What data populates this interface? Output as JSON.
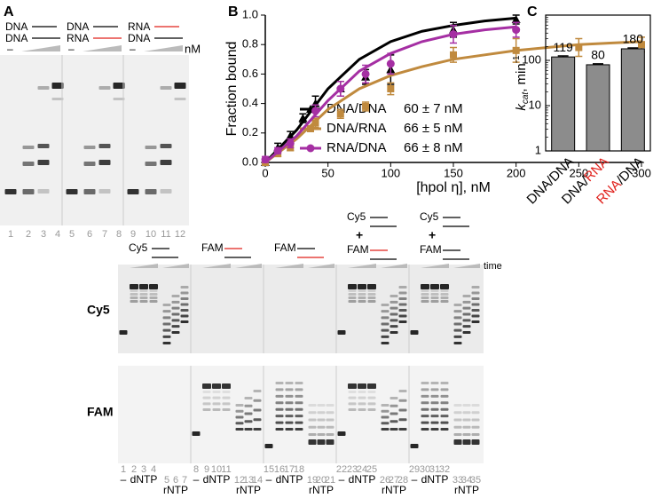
{
  "panel_a": {
    "label": "A",
    "groups": [
      {
        "top": "DNA",
        "bottom": "DNA",
        "top_color": "#000000",
        "bottom_color": "#000000"
      },
      {
        "top": "DNA",
        "bottom": "RNA",
        "top_color": "#000000",
        "bottom_color": "#e0201b"
      },
      {
        "top": "RNA",
        "bottom": "DNA",
        "top_color": "#e0201b",
        "bottom_color": "#000000"
      }
    ],
    "dash": "–",
    "unit": "nM",
    "lanes": [
      "1",
      "2",
      "3",
      "4",
      "5",
      "6",
      "7",
      "8",
      "9",
      "10",
      "11",
      "12"
    ]
  },
  "chart_data": [
    {
      "type": "line",
      "label": "B",
      "x_label": "[hpol η], nM",
      "y_label": "Fraction bound",
      "xlim": [
        0,
        300
      ],
      "xticks": [
        0,
        50,
        100,
        150,
        200,
        250,
        300
      ],
      "ylim": [
        0,
        1
      ],
      "yticks": [
        {
          "value": 0,
          "label": "0.0"
        },
        0.2,
        0.4,
        0.6,
        0.8,
        {
          "value": 1,
          "label": "1.0"
        }
      ],
      "fit_x": [
        0,
        25,
        50,
        75,
        100,
        125,
        150,
        175,
        200,
        225,
        250,
        275,
        300
      ],
      "series": [
        {
          "name": "DNA/DNA",
          "kd_label": "60 ± 7 nM",
          "color": "#000000",
          "marker": "triangle",
          "x": [
            0,
            10,
            20,
            30,
            40,
            60,
            80,
            100,
            150,
            200
          ],
          "values": [
            0,
            0.1,
            0.18,
            0.3,
            0.4,
            0.5,
            0.58,
            0.63,
            0.9,
            0.97
          ],
          "errors": [
            0.02,
            0.03,
            0.03,
            0.03,
            0.05,
            0.05,
            0.05,
            0.1,
            0.05,
            0.03
          ],
          "fit": [
            0,
            0.22,
            0.5,
            0.7,
            0.82,
            0.89,
            0.93,
            0.96,
            0.98,
            null,
            null,
            null,
            null
          ]
        },
        {
          "name": "DNA/RNA",
          "kd_label": "66 ± 5 nM",
          "color": "#c08a3e",
          "marker": "square",
          "x": [
            0,
            10,
            20,
            40,
            60,
            80,
            100,
            150,
            200,
            250,
            300
          ],
          "values": [
            0,
            0.06,
            0.1,
            0.27,
            0.33,
            0.38,
            0.5,
            0.73,
            0.76,
            0.78,
            0.8
          ],
          "errors": [
            0.01,
            0.02,
            0.02,
            0.03,
            0.03,
            0.03,
            0.04,
            0.05,
            0.08,
            0.06,
            0.05
          ],
          "fit": [
            0,
            0.16,
            0.36,
            0.5,
            0.59,
            0.65,
            0.7,
            0.73,
            0.76,
            0.78,
            0.8,
            0.81,
            0.82
          ]
        },
        {
          "name": "RNA/DNA",
          "kd_label": "66 ± 8 nM",
          "color": "#a52fa3",
          "marker": "circle",
          "x": [
            0,
            10,
            20,
            40,
            60,
            80,
            100,
            150,
            200
          ],
          "values": [
            0.02,
            0.08,
            0.13,
            0.35,
            0.5,
            0.6,
            0.67,
            0.87,
            0.9
          ],
          "errors": [
            0.02,
            0.02,
            0.03,
            0.04,
            0.05,
            0.06,
            0.07,
            0.06,
            0.05
          ],
          "fit": [
            0,
            0.18,
            0.42,
            0.62,
            0.74,
            0.82,
            0.87,
            0.9,
            0.92,
            null,
            null,
            null,
            null
          ]
        }
      ]
    },
    {
      "type": "bar",
      "label": "C",
      "log_scale": true,
      "y_label": {
        "symbol": "k",
        "subscript": "cat",
        "text": ", min",
        "superscript": "-1"
      },
      "categories": [
        [
          {
            "text": "DNA/DNA",
            "color": "#000000"
          }
        ],
        [
          {
            "text": "DNA/",
            "color": "#000000"
          },
          {
            "text": "RNA",
            "color": "#e0201b"
          }
        ],
        [
          {
            "text": "RNA",
            "color": "#e0201b"
          },
          {
            "text": "/DNA",
            "color": "#000000"
          }
        ]
      ],
      "values": [
        119,
        80,
        180
      ],
      "errors": [
        6,
        4,
        8
      ],
      "color": "#8c8c8c",
      "ylim": [
        1,
        1000
      ],
      "yticks": [
        1,
        10,
        100
      ]
    }
  ],
  "panel_d": {
    "label": "D",
    "rows": [
      "Cy5",
      "FAM"
    ],
    "time": "time",
    "groups": [
      {
        "labels": [
          "Cy5"
        ],
        "strands": [
          [
            "#000000",
            "#000000"
          ]
        ]
      },
      {
        "labels": [
          "FAM"
        ],
        "strands": [
          [
            "#e0201b",
            "#000000"
          ]
        ]
      },
      {
        "labels": [
          "FAM"
        ],
        "strands": [
          [
            "#000000",
            "#e0201b"
          ]
        ]
      },
      {
        "labels": [
          "Cy5",
          "FAM"
        ],
        "plus": "+",
        "strands": [
          [
            "#000000",
            "#000000"
          ],
          [
            "#e0201b",
            "#000000"
          ]
        ]
      },
      {
        "labels": [
          "Cy5",
          "FAM"
        ],
        "plus": "+",
        "strands": [
          [
            "#000000",
            "#000000"
          ],
          [
            "#000000",
            "#000000"
          ]
        ]
      }
    ],
    "lanes": [
      "1",
      "2",
      "3",
      "4",
      "5",
      "6",
      "7",
      "8",
      "9",
      "10",
      "11",
      "12",
      "13",
      "14",
      "15",
      "16",
      "17",
      "18",
      "19",
      "20",
      "21",
      "22",
      "23",
      "24",
      "25",
      "26",
      "27",
      "28",
      "29",
      "30",
      "31",
      "32",
      "33",
      "34",
      "35"
    ],
    "bottom": [
      {
        "minus": "–",
        "d": "dNTP",
        "r": "rNTP"
      },
      {
        "minus": "–",
        "d": "dNTP",
        "r": "rNTP"
      },
      {
        "minus": "–",
        "d": "dNTP",
        "r": "rNTP"
      },
      {
        "minus": "–",
        "d": "dNTP",
        "r": "rNTP"
      },
      {
        "minus": "–",
        "d": "dNTP",
        "r": "rNTP"
      }
    ]
  }
}
